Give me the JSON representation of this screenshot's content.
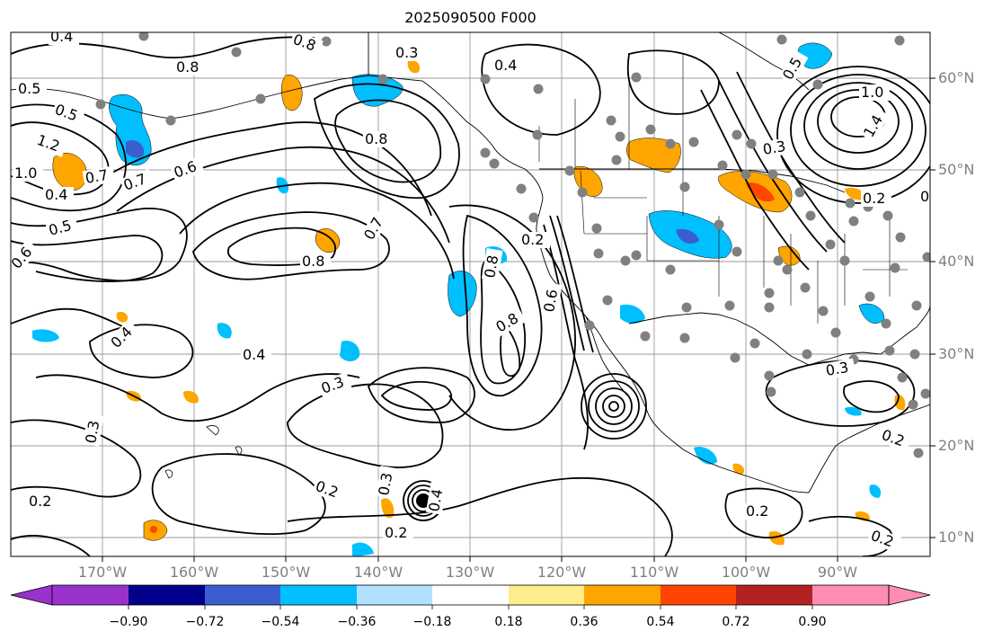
{
  "title": "2025090500 F000",
  "lat_labels": [
    "60°N",
    "50°N",
    "40°N",
    "30°N",
    "20°N",
    "10°N"
  ],
  "lon_labels": [
    "170°W",
    "160°W",
    "150°W",
    "140°W",
    "130°W",
    "120°W",
    "110°W",
    "100°W",
    "90°W"
  ],
  "contour_labels": [
    "0.4",
    "0.5",
    "0.5",
    "0.6",
    "0.7",
    "1.2",
    "1.0",
    "0.4",
    "0.7",
    "0.5",
    "0.6",
    "0.8",
    "0.8",
    "0.7",
    "0.8",
    "0.8",
    "0.4",
    "0.4",
    "0.3",
    "0.3",
    "0.2",
    "0.2",
    "0.2",
    "0.3",
    "0.4",
    "0.3",
    "0.4",
    "0.8",
    "0.8",
    "0.6",
    "0.2",
    "1.0",
    "0.5",
    "1.4",
    "0.3",
    "0.2",
    "0.3",
    "0.2",
    "0.2",
    "0.2",
    "0.2"
  ],
  "colorbar": {
    "ticks": [
      "−0.90",
      "−0.72",
      "−0.54",
      "−0.36",
      "−0.18",
      "0.18",
      "0.36",
      "0.54",
      "0.72",
      "0.90"
    ],
    "colors": [
      "#9932cc",
      "#00008b",
      "#3a5fcd",
      "#00bfff",
      "#b0e2ff",
      "#ffffff",
      "#ffec8b",
      "#ffa500",
      "#ff4500",
      "#b22222",
      "#ff8cb4"
    ]
  }
}
